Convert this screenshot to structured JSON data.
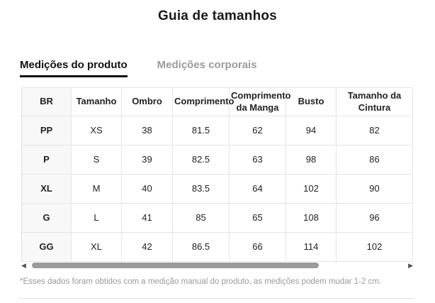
{
  "title": "Guia de tamanhos",
  "tabs": [
    {
      "label": "Medições do produto",
      "active": true
    },
    {
      "label": "Medições corporais",
      "active": false
    }
  ],
  "table": {
    "headers": [
      "BR",
      "Tamanho",
      "Ombro",
      "Comprimento",
      "Comprimento da Manga",
      "Busto",
      "Tamanho da Cintura"
    ],
    "rows": [
      [
        "PP",
        "XS",
        "38",
        "81.5",
        "62",
        "94",
        "82"
      ],
      [
        "P",
        "S",
        "39",
        "82.5",
        "63",
        "98",
        "86"
      ],
      [
        "XL",
        "M",
        "40",
        "83.5",
        "64",
        "102",
        "90"
      ],
      [
        "G",
        "L",
        "41",
        "85",
        "65",
        "108",
        "96"
      ],
      [
        "GG",
        "XL",
        "42",
        "86.5",
        "66",
        "114",
        "102"
      ]
    ]
  },
  "scrollbar": {
    "left_arrow": "◀",
    "right_arrow": "▶"
  },
  "footnote": "*Esses dados foram obtidos com a medição manual do produto, as medições podem mudar 1-2 cm.",
  "colors": {
    "active_tab": "#111111",
    "inactive_tab": "#9b9b9b",
    "table_border": "#e5e5e5",
    "first_column_bg": "#f8f8f8",
    "scrollbar_thumb": "#9b9b9b",
    "footnote_text": "#9a9a9a"
  }
}
